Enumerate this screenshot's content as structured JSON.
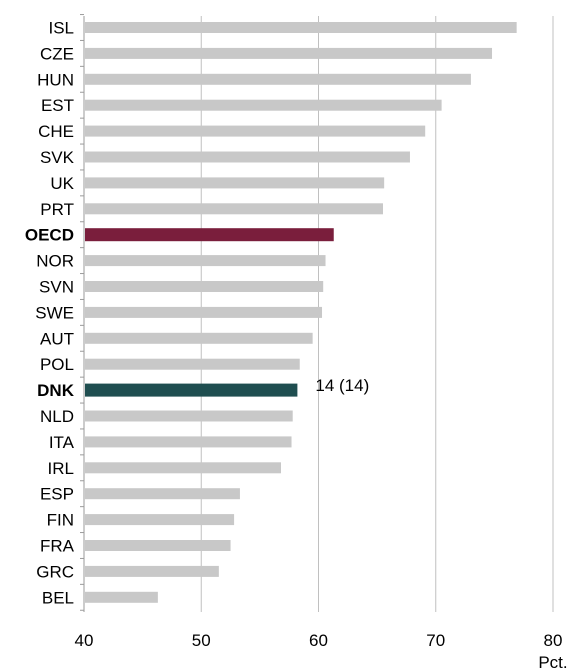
{
  "chart_data": {
    "type": "bar",
    "orientation": "horizontal",
    "categories": [
      "ISL",
      "CZE",
      "HUN",
      "EST",
      "CHE",
      "SVK",
      "UK",
      "PRT",
      "OECD",
      "NOR",
      "SVN",
      "SWE",
      "AUT",
      "POL",
      "DNK",
      "NLD",
      "ITA",
      "IRL",
      "ESP",
      "FIN",
      "FRA",
      "GRC",
      "BEL"
    ],
    "values": [
      76.9,
      74.8,
      73.0,
      70.5,
      69.1,
      67.8,
      65.6,
      65.5,
      61.3,
      60.6,
      60.4,
      60.3,
      59.5,
      58.4,
      58.2,
      57.8,
      57.7,
      56.8,
      53.3,
      52.8,
      52.5,
      51.5,
      46.3
    ],
    "bold_categories": [
      "OECD",
      "DNK"
    ],
    "xlim": [
      40,
      80
    ],
    "xticks": [
      40,
      50,
      60,
      70,
      80
    ],
    "xtick_labels": [
      "40",
      "50",
      "60",
      "70",
      "80"
    ],
    "x_unit": "Pct.",
    "grid": "vertical",
    "colors": {
      "default": "#c8c8c8",
      "OECD": "#7a1e3c",
      "DNK": "#1f4e50",
      "grid": "#c0c0c0",
      "axis": "#9a9a9a"
    },
    "annotations": [
      {
        "category": "DNK",
        "text": "14 (14)"
      }
    ]
  }
}
